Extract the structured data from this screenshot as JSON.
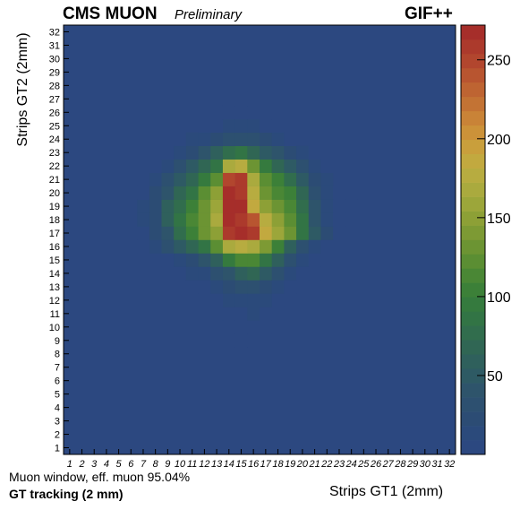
{
  "chart_data": {
    "type": "heatmap",
    "title": "CMS MUON",
    "subtitle": "Preliminary",
    "title_right": "GIF++",
    "xlabel": "Strips GT1 (2mm)",
    "ylabel": "Strips GT2 (2mm)",
    "annotations": [
      "Muon window, eff. muon 95.04%",
      "GT tracking (2 mm)"
    ],
    "x_tick_labels": [
      "1",
      "2",
      "3",
      "4",
      "5",
      "6",
      "7",
      "8",
      "9",
      "10",
      "11",
      "12",
      "13",
      "14",
      "15",
      "16",
      "17",
      "18",
      "19",
      "20",
      "21",
      "22",
      "23",
      "24",
      "25",
      "26",
      "27",
      "28",
      "29",
      "30",
      "31",
      "32"
    ],
    "y_tick_labels": [
      "1",
      "2",
      "3",
      "4",
      "5",
      "6",
      "7",
      "8",
      "9",
      "10",
      "11",
      "12",
      "13",
      "14",
      "15",
      "16",
      "17",
      "18",
      "19",
      "20",
      "21",
      "22",
      "23",
      "24",
      "25",
      "26",
      "27",
      "28",
      "29",
      "30",
      "31",
      "32"
    ],
    "colorbar_ticks": [
      "50",
      "100",
      "150",
      "200",
      "250"
    ],
    "zlim": [
      0,
      272
    ],
    "colorbar_colors": [
      "#2c4880",
      "#2b4a7b",
      "#2c4c74",
      "#2d5070",
      "#2e546b",
      "#2e5a64",
      "#2f605c",
      "#306654",
      "#316d4d",
      "#327445",
      "#357a3e",
      "#3c8038",
      "#4a8735",
      "#5b8e33",
      "#6c9433",
      "#7d9a34",
      "#8da036",
      "#9ca63a",
      "#aaaa3e",
      "#b7ac40",
      "#c2a93f",
      "#c99f3c",
      "#cc9239",
      "#c98337",
      "#c37334",
      "#be6432",
      "#b85530",
      "#b2462e",
      "#ac3a2c",
      "#a62e2a"
    ],
    "background_color": "#2c4880",
    "x_index": [
      "1",
      "2",
      "3",
      "4",
      "5",
      "6",
      "7",
      "8",
      "9",
      "10",
      "11",
      "12",
      "13",
      "14",
      "15",
      "16",
      "17",
      "18",
      "19",
      "20",
      "21",
      "22",
      "23",
      "24",
      "25",
      "26",
      "27",
      "28",
      "29",
      "30",
      "31",
      "32"
    ],
    "y_index": [
      "1",
      "2",
      "3",
      "4",
      "5",
      "6",
      "7",
      "8",
      "9",
      "10",
      "11",
      "12",
      "13",
      "14",
      "15",
      "16",
      "17",
      "18",
      "19",
      "20",
      "21",
      "22",
      "23",
      "24",
      "25",
      "26",
      "27",
      "28",
      "29",
      "30",
      "31",
      "32"
    ],
    "cells": [
      [
        15,
        8,
        3
      ],
      [
        15,
        9,
        3
      ],
      [
        16,
        9,
        3
      ],
      [
        15,
        10,
        4
      ],
      [
        16,
        10,
        5
      ],
      [
        17,
        10,
        3
      ],
      [
        13,
        11,
        4
      ],
      [
        14,
        11,
        5
      ],
      [
        15,
        11,
        8
      ],
      [
        16,
        11,
        10
      ],
      [
        17,
        11,
        6
      ],
      [
        18,
        11,
        4
      ],
      [
        12,
        12,
        4
      ],
      [
        13,
        12,
        6
      ],
      [
        14,
        12,
        10
      ],
      [
        15,
        12,
        15
      ],
      [
        16,
        12,
        18
      ],
      [
        17,
        12,
        12
      ],
      [
        18,
        12,
        7
      ],
      [
        19,
        12,
        4
      ],
      [
        11,
        13,
        5
      ],
      [
        12,
        13,
        8
      ],
      [
        13,
        13,
        12
      ],
      [
        14,
        13,
        20
      ],
      [
        15,
        13,
        30
      ],
      [
        16,
        13,
        35
      ],
      [
        17,
        13,
        25
      ],
      [
        18,
        13,
        15
      ],
      [
        19,
        13,
        8
      ],
      [
        20,
        13,
        5
      ],
      [
        10,
        14,
        8
      ],
      [
        11,
        14,
        12
      ],
      [
        12,
        14,
        18
      ],
      [
        13,
        14,
        28
      ],
      [
        14,
        14,
        45
      ],
      [
        15,
        14,
        60
      ],
      [
        16,
        14,
        70
      ],
      [
        17,
        14,
        50
      ],
      [
        18,
        14,
        30
      ],
      [
        19,
        14,
        15
      ],
      [
        20,
        14,
        8
      ],
      [
        21,
        14,
        5
      ],
      [
        8,
        15,
        4
      ],
      [
        9,
        15,
        8
      ],
      [
        10,
        15,
        15
      ],
      [
        11,
        15,
        25
      ],
      [
        12,
        15,
        40
      ],
      [
        13,
        15,
        60
      ],
      [
        14,
        15,
        95
      ],
      [
        15,
        15,
        115
      ],
      [
        16,
        15,
        110
      ],
      [
        17,
        15,
        85
      ],
      [
        18,
        15,
        55
      ],
      [
        19,
        15,
        28
      ],
      [
        20,
        15,
        15
      ],
      [
        21,
        15,
        8
      ],
      [
        22,
        15,
        4
      ],
      [
        7,
        16,
        5
      ],
      [
        8,
        16,
        12
      ],
      [
        9,
        16,
        28
      ],
      [
        10,
        16,
        48
      ],
      [
        11,
        16,
        68
      ],
      [
        12,
        16,
        90
      ],
      [
        13,
        16,
        120
      ],
      [
        14,
        16,
        170
      ],
      [
        15,
        16,
        180
      ],
      [
        16,
        16,
        165
      ],
      [
        17,
        16,
        140
      ],
      [
        18,
        16,
        100
      ],
      [
        19,
        16,
        60
      ],
      [
        20,
        16,
        32
      ],
      [
        21,
        16,
        15
      ],
      [
        22,
        16,
        6
      ],
      [
        7,
        17,
        8
      ],
      [
        8,
        17,
        20
      ],
      [
        9,
        17,
        45
      ],
      [
        10,
        17,
        75
      ],
      [
        11,
        17,
        100
      ],
      [
        12,
        17,
        128
      ],
      [
        13,
        17,
        150
      ],
      [
        14,
        17,
        262
      ],
      [
        15,
        17,
        265
      ],
      [
        16,
        17,
        255
      ],
      [
        17,
        17,
        190
      ],
      [
        18,
        17,
        160
      ],
      [
        19,
        17,
        130
      ],
      [
        20,
        17,
        90
      ],
      [
        21,
        17,
        50
      ],
      [
        22,
        17,
        22
      ],
      [
        23,
        17,
        8
      ],
      [
        7,
        18,
        10
      ],
      [
        8,
        18,
        25
      ],
      [
        9,
        18,
        55
      ],
      [
        10,
        18,
        85
      ],
      [
        11,
        18,
        110
      ],
      [
        12,
        18,
        135
      ],
      [
        13,
        18,
        165
      ],
      [
        14,
        18,
        268
      ],
      [
        15,
        18,
        262
      ],
      [
        16,
        18,
        240
      ],
      [
        17,
        18,
        175
      ],
      [
        18,
        18,
        150
      ],
      [
        19,
        18,
        120
      ],
      [
        20,
        18,
        85
      ],
      [
        21,
        18,
        45
      ],
      [
        22,
        18,
        18
      ],
      [
        23,
        18,
        6
      ],
      [
        7,
        19,
        10
      ],
      [
        8,
        19,
        25
      ],
      [
        9,
        19,
        55
      ],
      [
        10,
        19,
        80
      ],
      [
        11,
        19,
        105
      ],
      [
        12,
        19,
        130
      ],
      [
        13,
        19,
        160
      ],
      [
        14,
        19,
        270
      ],
      [
        15,
        19,
        265
      ],
      [
        16,
        19,
        185
      ],
      [
        17,
        19,
        150
      ],
      [
        18,
        19,
        130
      ],
      [
        19,
        19,
        115
      ],
      [
        20,
        19,
        80
      ],
      [
        21,
        19,
        45
      ],
      [
        22,
        19,
        18
      ],
      [
        23,
        19,
        6
      ],
      [
        4,
        20,
        4
      ],
      [
        7,
        20,
        8
      ],
      [
        8,
        20,
        20
      ],
      [
        9,
        20,
        45
      ],
      [
        10,
        20,
        70
      ],
      [
        11,
        20,
        90
      ],
      [
        12,
        20,
        118
      ],
      [
        13,
        20,
        150
      ],
      [
        14,
        20,
        265
      ],
      [
        15,
        20,
        260
      ],
      [
        16,
        20,
        175
      ],
      [
        17,
        20,
        135
      ],
      [
        18,
        20,
        115
      ],
      [
        19,
        20,
        100
      ],
      [
        20,
        20,
        70
      ],
      [
        21,
        20,
        35
      ],
      [
        22,
        20,
        12
      ],
      [
        23,
        20,
        5
      ],
      [
        24,
        20,
        4
      ],
      [
        7,
        21,
        6
      ],
      [
        8,
        21,
        12
      ],
      [
        9,
        21,
        30
      ],
      [
        10,
        21,
        50
      ],
      [
        11,
        21,
        70
      ],
      [
        12,
        21,
        95
      ],
      [
        13,
        21,
        125
      ],
      [
        14,
        21,
        245
      ],
      [
        15,
        21,
        255
      ],
      [
        16,
        21,
        165
      ],
      [
        17,
        21,
        125
      ],
      [
        18,
        21,
        100
      ],
      [
        19,
        21,
        80
      ],
      [
        20,
        21,
        50
      ],
      [
        21,
        21,
        25
      ],
      [
        22,
        21,
        10
      ],
      [
        8,
        22,
        8
      ],
      [
        9,
        22,
        15
      ],
      [
        10,
        22,
        30
      ],
      [
        11,
        22,
        48
      ],
      [
        12,
        22,
        65
      ],
      [
        13,
        22,
        88
      ],
      [
        14,
        22,
        170
      ],
      [
        15,
        22,
        178
      ],
      [
        16,
        22,
        130
      ],
      [
        17,
        22,
        95
      ],
      [
        18,
        22,
        70
      ],
      [
        19,
        22,
        50
      ],
      [
        20,
        22,
        28
      ],
      [
        21,
        22,
        12
      ],
      [
        22,
        22,
        5
      ],
      [
        9,
        23,
        8
      ],
      [
        10,
        23,
        15
      ],
      [
        11,
        23,
        25
      ],
      [
        12,
        23,
        38
      ],
      [
        13,
        23,
        55
      ],
      [
        14,
        23,
        80
      ],
      [
        15,
        23,
        85
      ],
      [
        16,
        23,
        70
      ],
      [
        17,
        23,
        52
      ],
      [
        18,
        23,
        38
      ],
      [
        19,
        23,
        25
      ],
      [
        20,
        23,
        12
      ],
      [
        21,
        23,
        6
      ],
      [
        10,
        24,
        6
      ],
      [
        11,
        24,
        10
      ],
      [
        12,
        24,
        15
      ],
      [
        13,
        24,
        22
      ],
      [
        14,
        24,
        32
      ],
      [
        15,
        24,
        35
      ],
      [
        16,
        24,
        28
      ],
      [
        17,
        24,
        20
      ],
      [
        18,
        24,
        14
      ],
      [
        19,
        24,
        8
      ],
      [
        12,
        25,
        5
      ],
      [
        13,
        25,
        8
      ],
      [
        14,
        25,
        12
      ],
      [
        15,
        25,
        14
      ],
      [
        16,
        25,
        12
      ],
      [
        17,
        25,
        8
      ],
      [
        18,
        25,
        5
      ],
      [
        13,
        26,
        3
      ],
      [
        14,
        26,
        5
      ],
      [
        15,
        26,
        6
      ],
      [
        16,
        26,
        5
      ],
      [
        17,
        26,
        3
      ],
      [
        14,
        27,
        3
      ],
      [
        15,
        27,
        3
      ],
      [
        16,
        27,
        3
      ]
    ]
  }
}
